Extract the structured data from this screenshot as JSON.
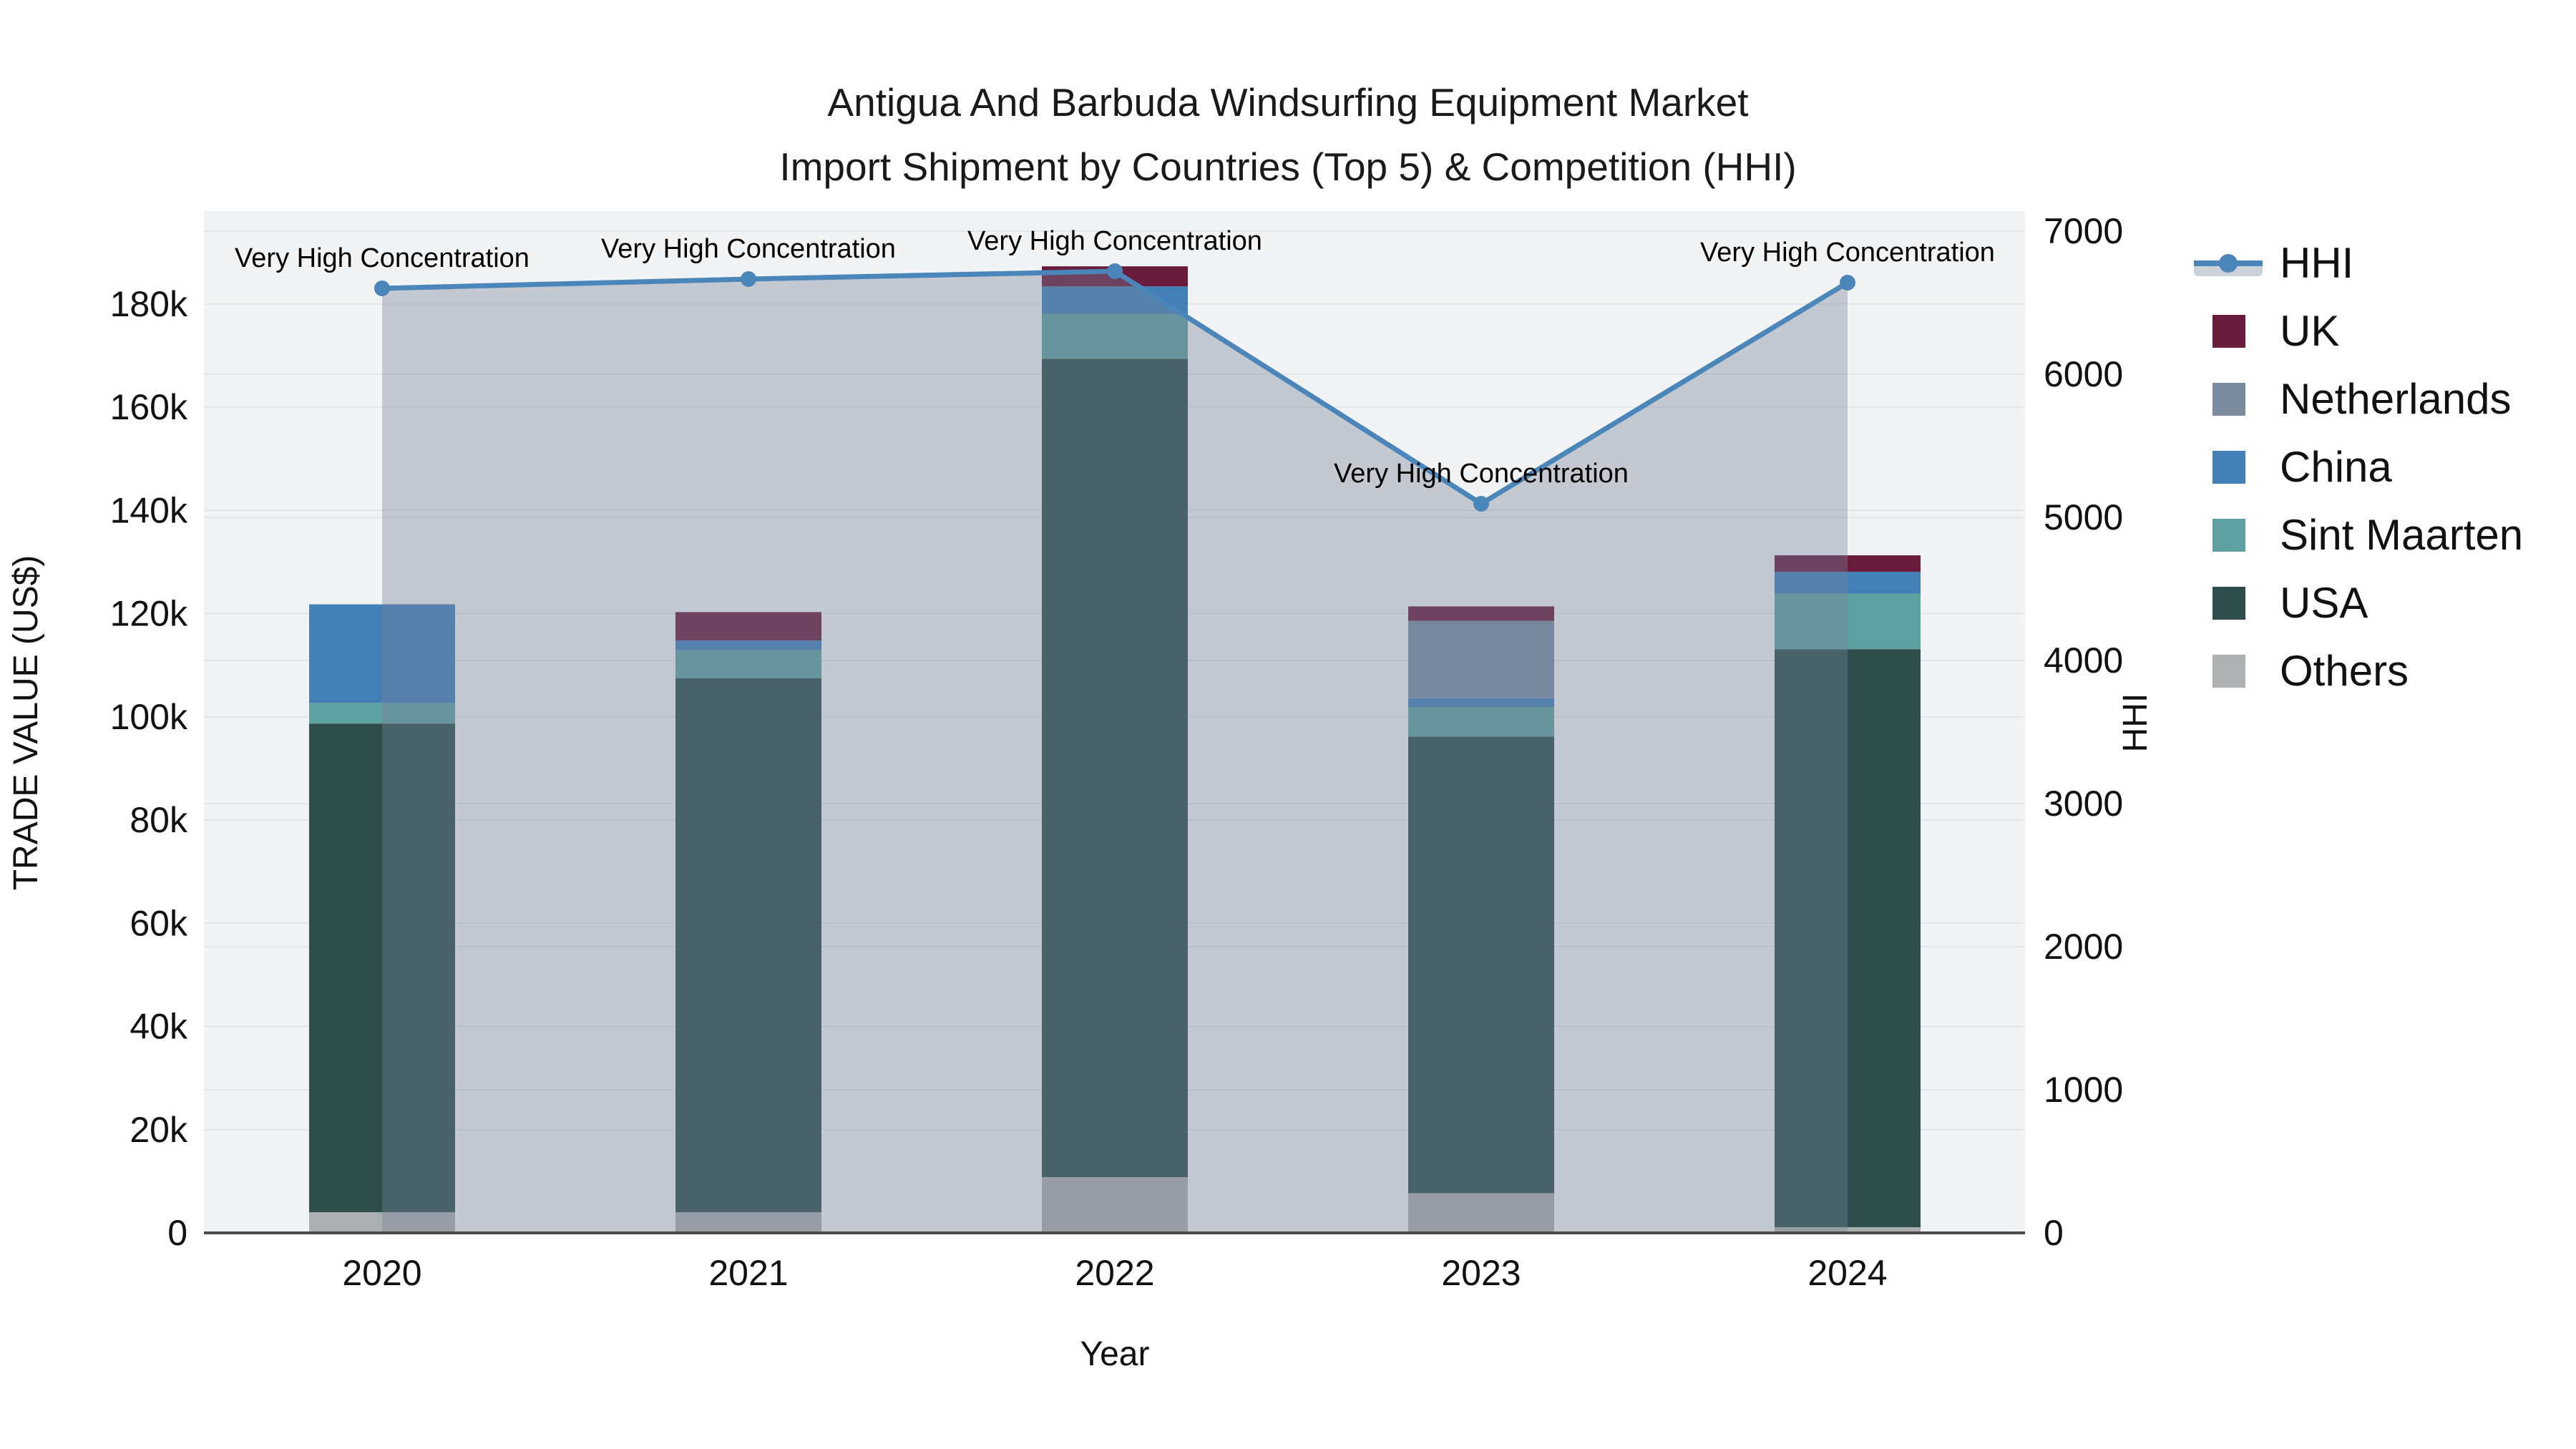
{
  "figure": {
    "title_line1": "Antigua And Barbuda Windsurfing Equipment Market",
    "title_line2": "Import Shipment by Countries (Top 5) & Competition (HHI)"
  },
  "colors": {
    "plot_bg": "#f2f3f4",
    "grid": "#e3e5e7",
    "axis_line": "#4a4a4a",
    "hhi_line": "#4a86ba",
    "hhi_area": "rgba(119,132,153,0.38)",
    "legend_area_swatch": "#ccd2da"
  },
  "chart_data": {
    "type": "bar",
    "subtype": "stacked-bars-with-hhi-line",
    "x": [
      "2020",
      "2021",
      "2022",
      "2023",
      "2024"
    ],
    "xlabel": "Year",
    "ylabel_left": "TRADE VALUE (US$)",
    "ylabel_right": "HHI",
    "ylim_left": [
      0,
      198000
    ],
    "ylim_right": [
      0,
      7140
    ],
    "grid": true,
    "legend_position": "right",
    "yticks_left": [
      {
        "value": 0,
        "label": "0"
      },
      {
        "value": 20000,
        "label": "20k"
      },
      {
        "value": 40000,
        "label": "40k"
      },
      {
        "value": 60000,
        "label": "60k"
      },
      {
        "value": 80000,
        "label": "80k"
      },
      {
        "value": 100000,
        "label": "100k"
      },
      {
        "value": 120000,
        "label": "120k"
      },
      {
        "value": 140000,
        "label": "140k"
      },
      {
        "value": 160000,
        "label": "160k"
      },
      {
        "value": 180000,
        "label": "180k"
      }
    ],
    "yticks_right": [
      {
        "value": 0,
        "label": "0"
      },
      {
        "value": 1000,
        "label": "1000"
      },
      {
        "value": 2000,
        "label": "2000"
      },
      {
        "value": 3000,
        "label": "3000"
      },
      {
        "value": 4000,
        "label": "4000"
      },
      {
        "value": 5000,
        "label": "5000"
      },
      {
        "value": 6000,
        "label": "6000"
      },
      {
        "value": 7000,
        "label": "7000"
      }
    ],
    "series": [
      {
        "name": "Others",
        "color": "#acafb0",
        "values": [
          4000,
          4000,
          10800,
          7700,
          1100
        ]
      },
      {
        "name": "USA",
        "color": "#2e4d4b",
        "values": [
          94700,
          103500,
          158600,
          88500,
          112000
        ]
      },
      {
        "name": "Sint Maarten",
        "color": "#5fa0a0",
        "values": [
          4000,
          5400,
          8700,
          5700,
          10800
        ]
      },
      {
        "name": "China",
        "color": "#4380b8",
        "values": [
          19100,
          1900,
          5300,
          1700,
          4200
        ]
      },
      {
        "name": "Netherlands",
        "color": "#7b8b9e",
        "values": [
          0,
          0,
          0,
          15000,
          0
        ]
      },
      {
        "name": "UK",
        "color": "#6a1c3d",
        "values": [
          0,
          5500,
          3900,
          2800,
          3200
        ]
      }
    ],
    "line_series": {
      "name": "HHI",
      "values": [
        6600,
        6665,
        6720,
        5095,
        6640
      ]
    },
    "annotations": [
      {
        "x": "2020",
        "text": "Very High Concentration"
      },
      {
        "x": "2021",
        "text": "Very High Concentration"
      },
      {
        "x": "2022",
        "text": "Very High Concentration"
      },
      {
        "x": "2023",
        "text": "Very High Concentration"
      },
      {
        "x": "2024",
        "text": "Very High Concentration"
      }
    ],
    "legend": [
      {
        "label": "HHI",
        "type": "line"
      },
      {
        "label": "UK",
        "type": "square",
        "color": "#6a1c3d"
      },
      {
        "label": "Netherlands",
        "type": "square",
        "color": "#7b8b9e"
      },
      {
        "label": "China",
        "type": "square",
        "color": "#4380b8"
      },
      {
        "label": "Sint Maarten",
        "type": "square",
        "color": "#5fa0a0"
      },
      {
        "label": "USA",
        "type": "square",
        "color": "#2e4d4b"
      },
      {
        "label": "Others",
        "type": "square",
        "color": "#aeb1b2"
      }
    ]
  }
}
